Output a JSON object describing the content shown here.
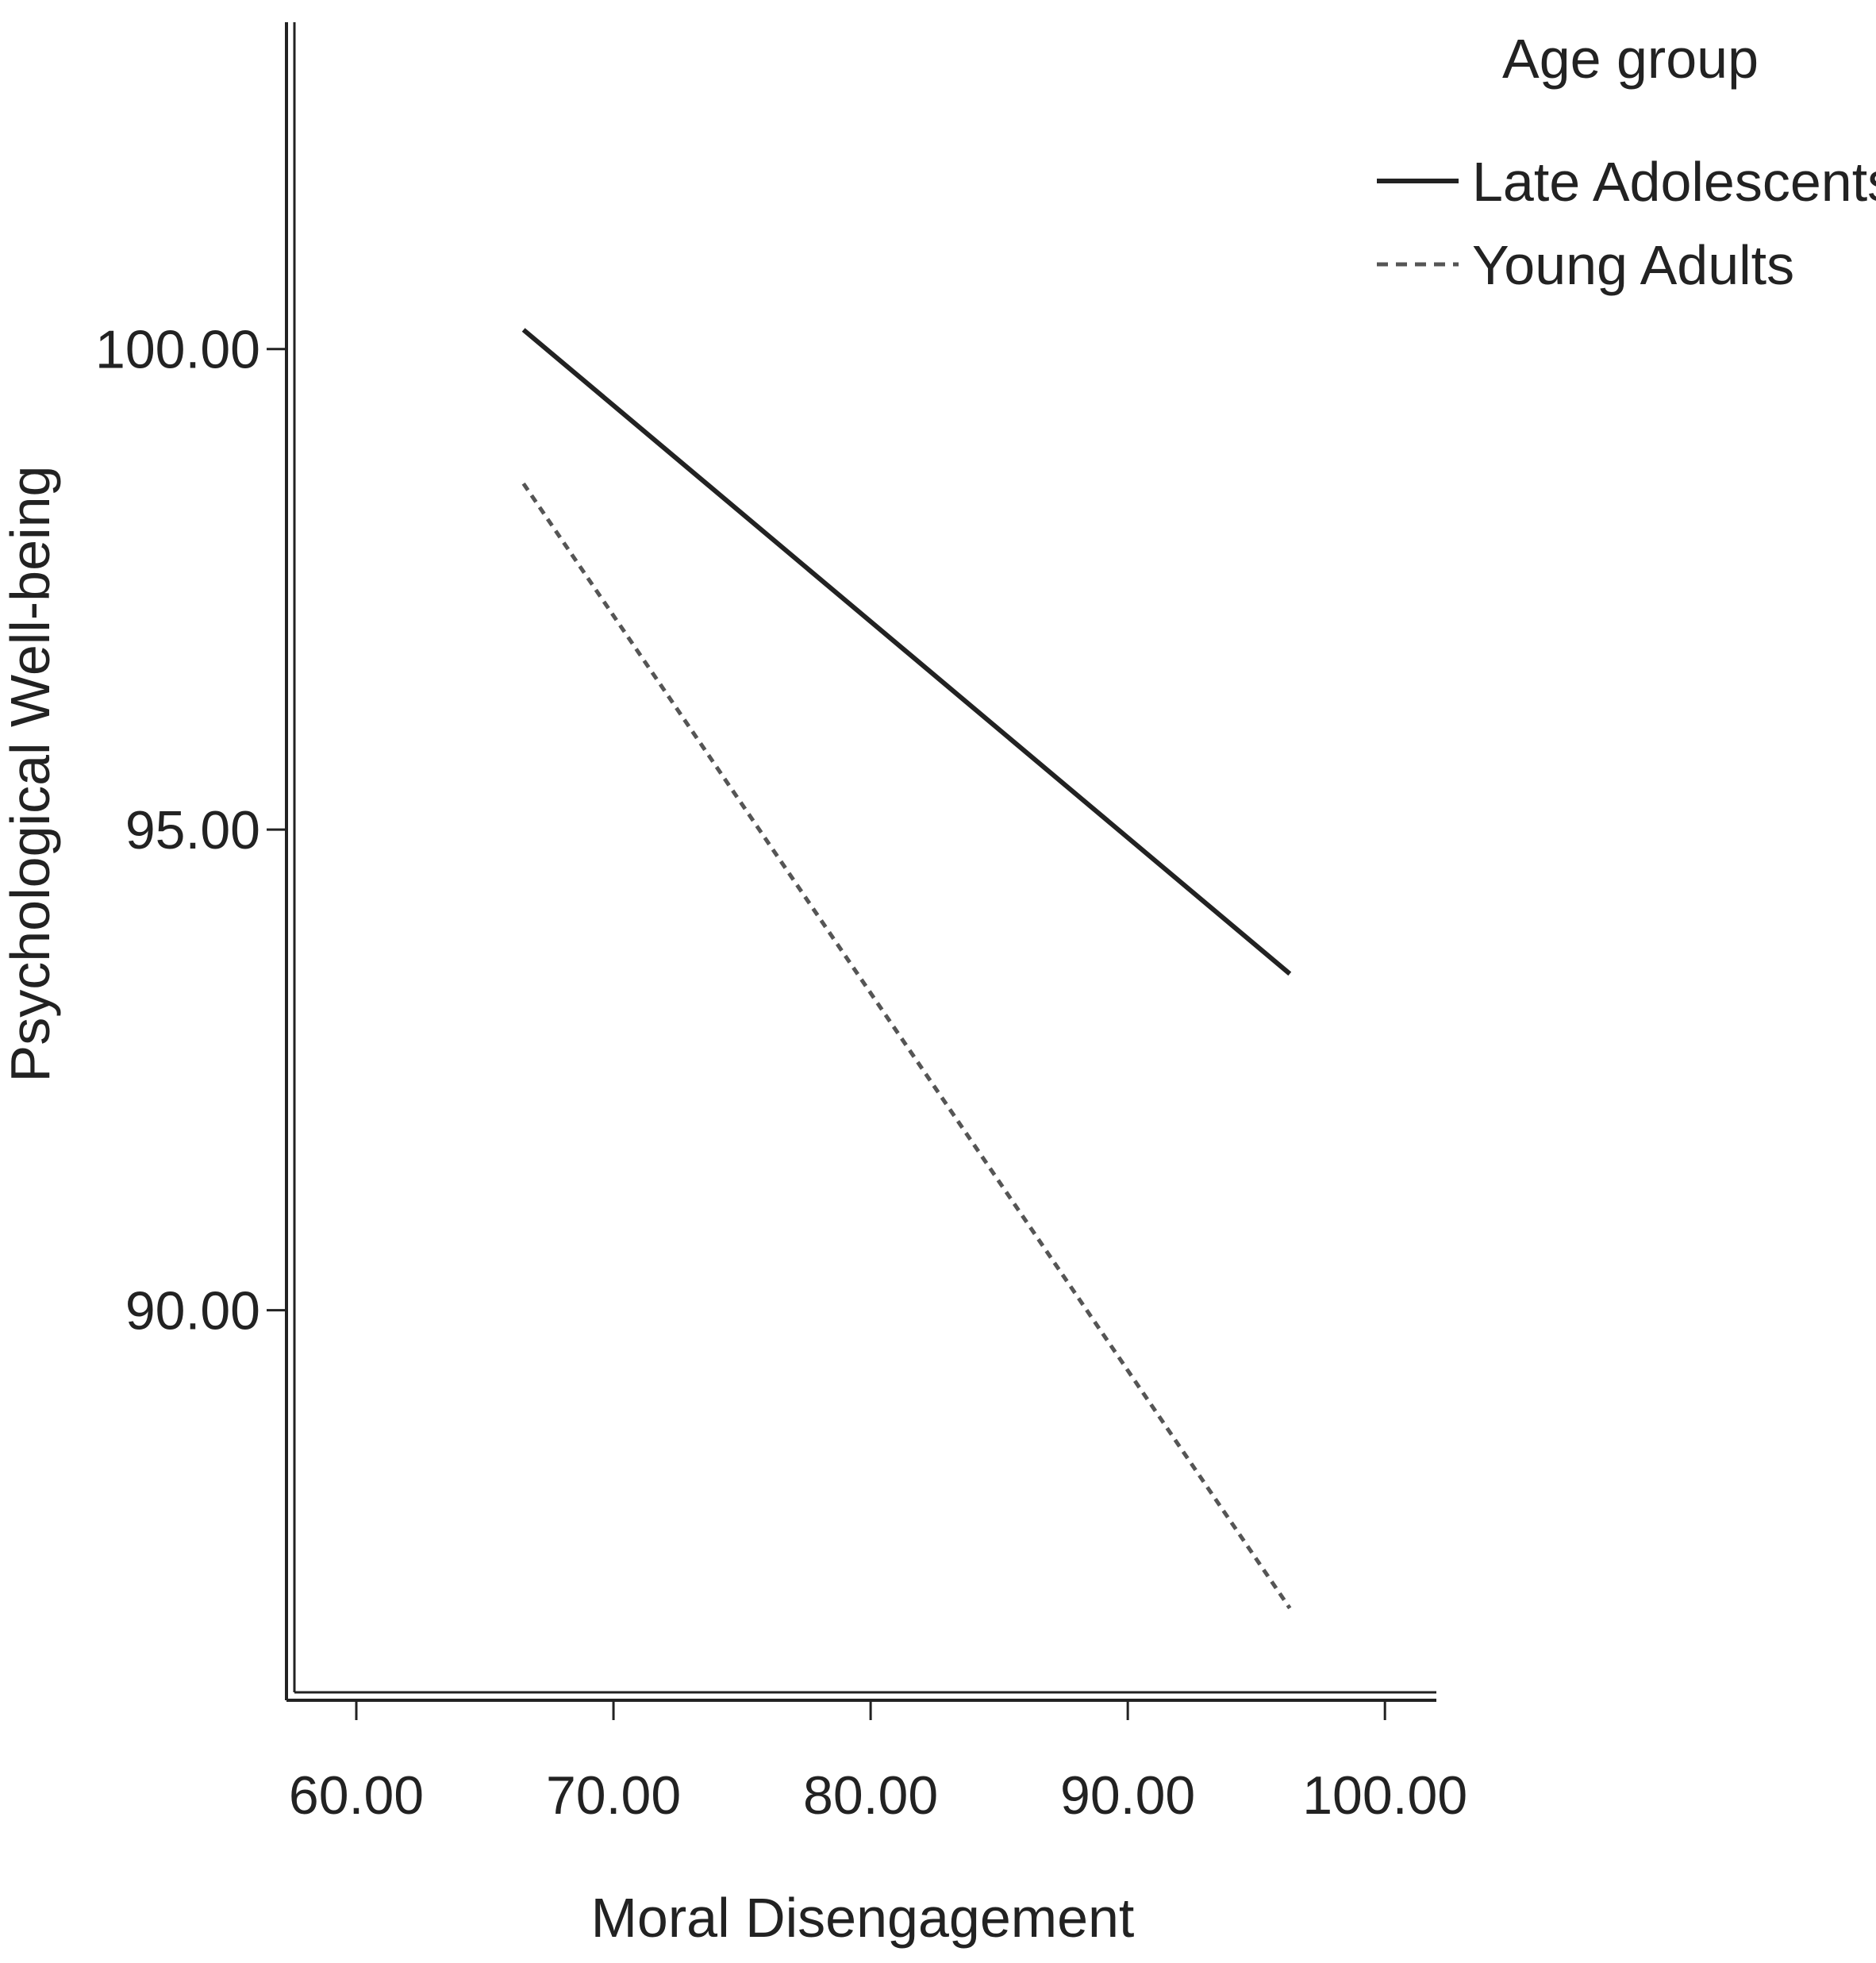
{
  "chart_data": {
    "type": "line",
    "xlabel": "Moral Disengagement",
    "ylabel": "Psychological Well-being",
    "xlim": [
      57.5,
      102
    ],
    "ylim": [
      86,
      103.4
    ],
    "x_ticks": [
      60,
      70,
      80,
      90,
      100
    ],
    "x_tick_labels": [
      "60.00",
      "70.00",
      "80.00",
      "90.00",
      "100.00"
    ],
    "y_ticks": [
      90,
      95,
      100
    ],
    "y_tick_labels": [
      "90.00",
      "95.00",
      "100.00"
    ],
    "grid": false,
    "legend": {
      "title": "Age group",
      "placement": "top-right"
    },
    "series": [
      {
        "name": "Late Adolescents",
        "style": "solid",
        "color": "#222222",
        "x": [
          66.5,
          96.3
        ],
        "y": [
          100.2,
          93.5
        ]
      },
      {
        "name": "Young Adults",
        "style": "dashed",
        "color": "#555555",
        "x": [
          66.5,
          96.3
        ],
        "y": [
          98.6,
          86.9
        ]
      }
    ]
  }
}
